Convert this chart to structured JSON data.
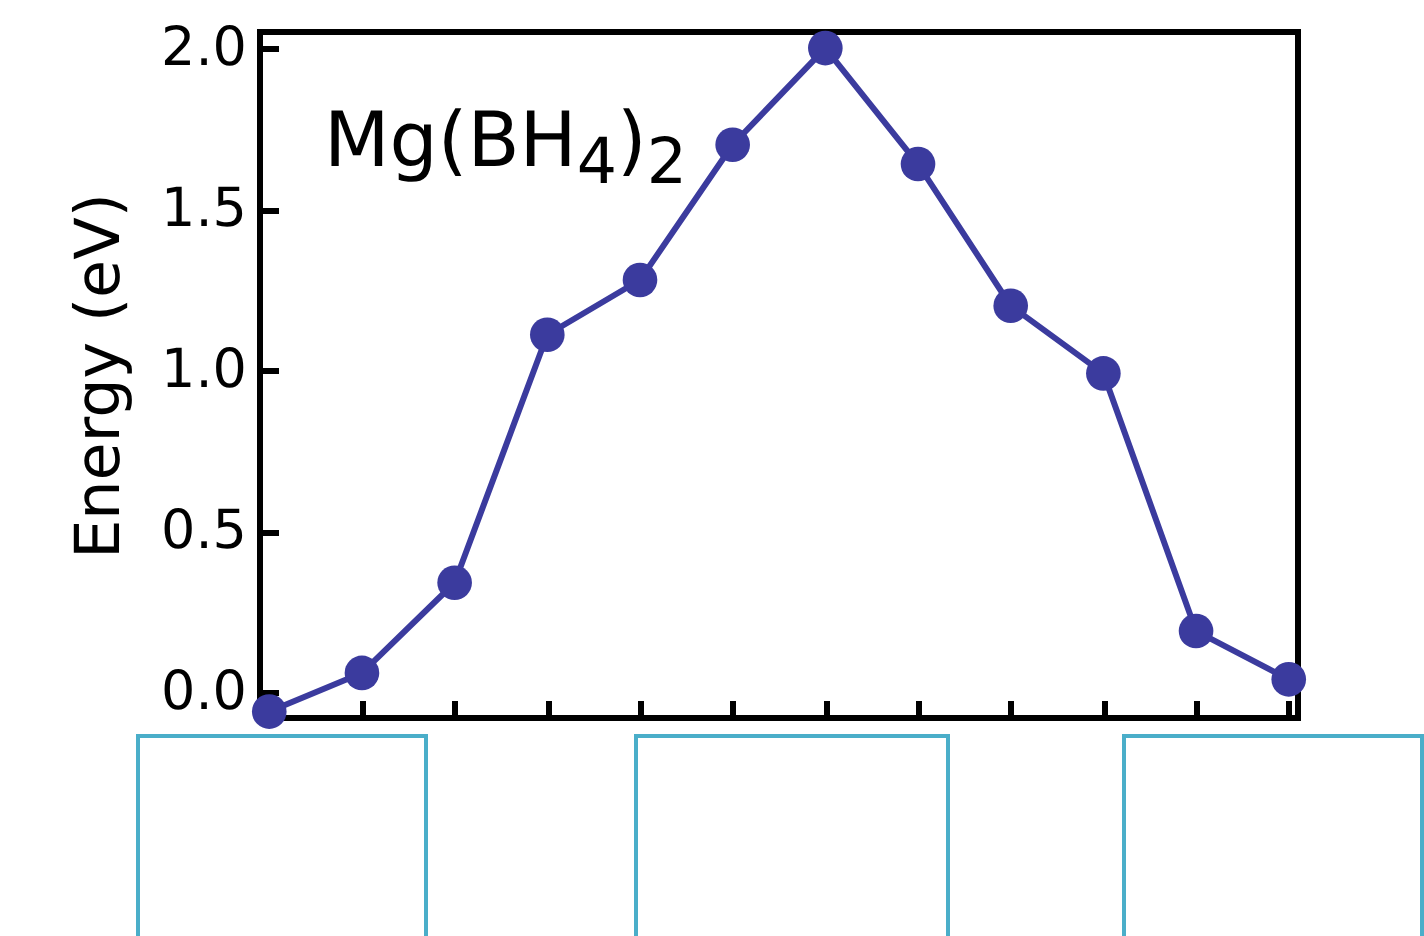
{
  "chart_data": {
    "type": "line",
    "ylabel": "Energy (eV)",
    "annotations": [
      "Mg(BH$_{4}$)$_{2}$"
    ],
    "categories": [
      null,
      null,
      null,
      null,
      null,
      null,
      null,
      null,
      null,
      null,
      null,
      null
    ],
    "series": [
      {
        "color": "#3b3b9e",
        "values": [
          -0.06,
          0.06,
          0.34,
          1.11,
          1.28,
          1.7,
          2.0,
          1.64,
          1.2,
          0.99,
          0.19,
          0.04
        ]
      }
    ],
    "ylim": [
      -0.08,
      2.05
    ],
    "yticks": [
      {
        "value": 0,
        "label": "0.0"
      },
      {
        "value": 0.5,
        "label": "0.5"
      },
      {
        "value": 1,
        "label": "1.0"
      },
      {
        "value": 1.5,
        "label": "1.5"
      },
      {
        "value": 2,
        "label": "2.0"
      }
    ],
    "tick_labels": "y",
    "grid": false,
    "marker": "circle",
    "line_style": "solid"
  }
}
